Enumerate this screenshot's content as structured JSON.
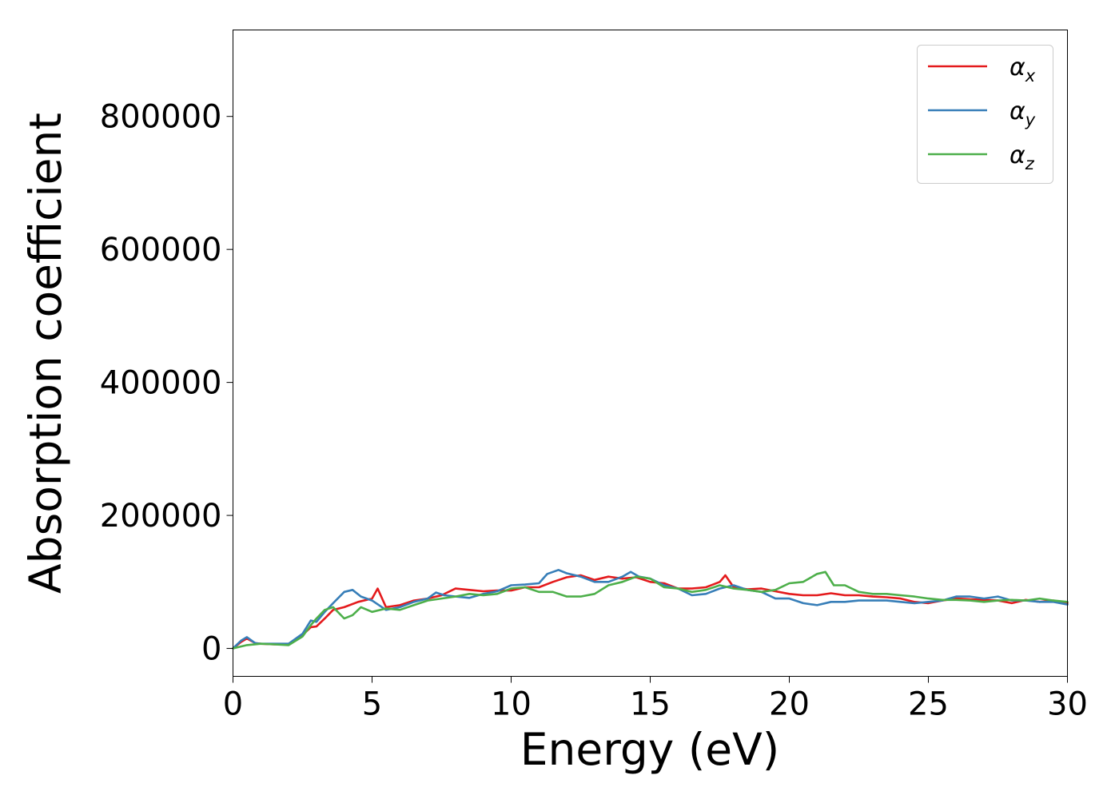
{
  "chart_data": {
    "type": "line",
    "xlabel": "Energy (eV)",
    "ylabel": "Absorption coefficient",
    "xlim": [
      0,
      30
    ],
    "ylim": [
      -42000,
      930000
    ],
    "xticks": [
      0,
      5,
      10,
      15,
      20,
      25,
      30
    ],
    "xtick_labels": [
      "0",
      "5",
      "10",
      "15",
      "20",
      "25",
      "30"
    ],
    "yticks": [
      0,
      200000,
      400000,
      600000,
      800000
    ],
    "ytick_labels": [
      "0",
      "200000",
      "400000",
      "600000",
      "800000"
    ],
    "grid": false,
    "legend_position": "top-right",
    "series": [
      {
        "name": "α",
        "subscript": "x",
        "color": "#e41a1c",
        "x": [
          0,
          0.3,
          0.5,
          0.8,
          1.0,
          1.5,
          2.0,
          2.5,
          2.8,
          3.0,
          3.3,
          3.6,
          4.0,
          4.5,
          5.0,
          5.2,
          5.5,
          6.0,
          6.5,
          7.0,
          7.5,
          8.0,
          8.5,
          9.0,
          9.5,
          10.0,
          10.5,
          11.0,
          11.5,
          12.0,
          12.5,
          13.0,
          13.5,
          14.0,
          14.5,
          15.0,
          15.5,
          16.0,
          16.5,
          17.0,
          17.5,
          17.7,
          18.0,
          18.5,
          19.0,
          19.5,
          20.0,
          20.5,
          21.0,
          21.5,
          22.0,
          22.5,
          23.0,
          23.5,
          24.0,
          24.5,
          25.0,
          25.5,
          26.0,
          26.5,
          27.0,
          27.5,
          28.0,
          28.5,
          29.0,
          29.5,
          30.0
        ],
        "y": [
          0,
          10000,
          15000,
          8000,
          7000,
          6000,
          7000,
          20000,
          32000,
          33000,
          45000,
          58000,
          62000,
          70000,
          75000,
          90000,
          62000,
          65000,
          72000,
          75000,
          80000,
          90000,
          88000,
          86000,
          87000,
          87000,
          92000,
          92000,
          100000,
          107000,
          110000,
          103000,
          108000,
          105000,
          107000,
          100000,
          98000,
          90000,
          90000,
          92000,
          100000,
          110000,
          92000,
          89000,
          90000,
          86000,
          82000,
          80000,
          80000,
          83000,
          80000,
          80000,
          78000,
          77000,
          75000,
          70000,
          68000,
          72000,
          75000,
          74000,
          73000,
          72000,
          68000,
          73000,
          70000,
          72000,
          68000
        ]
      },
      {
        "name": "α",
        "subscript": "y",
        "color": "#377eb8",
        "x": [
          0,
          0.3,
          0.5,
          0.8,
          1.0,
          1.5,
          2.0,
          2.5,
          2.8,
          3.0,
          3.3,
          3.6,
          4.0,
          4.3,
          4.6,
          5.0,
          5.5,
          6.0,
          6.5,
          7.0,
          7.3,
          7.6,
          8.0,
          8.5,
          9.0,
          9.5,
          10.0,
          10.5,
          11.0,
          11.3,
          11.7,
          12.0,
          12.5,
          13.0,
          13.5,
          14.0,
          14.3,
          14.6,
          15.0,
          15.5,
          16.0,
          16.5,
          17.0,
          17.5,
          18.0,
          18.5,
          19.0,
          19.5,
          20.0,
          20.5,
          21.0,
          21.5,
          22.0,
          22.5,
          23.0,
          23.5,
          24.0,
          24.5,
          25.0,
          25.5,
          26.0,
          26.5,
          27.0,
          27.5,
          28.0,
          28.5,
          29.0,
          29.5,
          30.0
        ],
        "y": [
          0,
          12000,
          17000,
          8000,
          7000,
          7000,
          7000,
          22000,
          42000,
          40000,
          55000,
          68000,
          85000,
          88000,
          78000,
          72000,
          58000,
          62000,
          70000,
          75000,
          84000,
          80000,
          78000,
          76000,
          82000,
          86000,
          95000,
          96000,
          98000,
          112000,
          118000,
          113000,
          108000,
          100000,
          100000,
          108000,
          115000,
          108000,
          105000,
          95000,
          90000,
          80000,
          82000,
          90000,
          95000,
          88000,
          85000,
          75000,
          75000,
          68000,
          65000,
          70000,
          70000,
          72000,
          72000,
          72000,
          70000,
          68000,
          70000,
          72000,
          78000,
          78000,
          75000,
          78000,
          72000,
          72000,
          70000,
          70000,
          66000
        ]
      },
      {
        "name": "α",
        "subscript": "z",
        "color": "#4daf4a",
        "x": [
          0,
          0.5,
          1.0,
          1.5,
          2.0,
          2.5,
          2.8,
          3.0,
          3.3,
          3.6,
          4.0,
          4.3,
          4.6,
          5.0,
          5.5,
          6.0,
          6.5,
          7.0,
          7.5,
          8.0,
          8.5,
          9.0,
          9.5,
          10.0,
          10.5,
          11.0,
          11.5,
          12.0,
          12.5,
          13.0,
          13.5,
          14.0,
          14.5,
          15.0,
          15.5,
          16.0,
          16.5,
          17.0,
          17.5,
          18.0,
          18.5,
          19.0,
          19.5,
          20.0,
          20.5,
          21.0,
          21.3,
          21.6,
          22.0,
          22.5,
          23.0,
          23.5,
          24.0,
          24.5,
          25.0,
          25.5,
          26.0,
          26.5,
          27.0,
          27.5,
          28.0,
          28.5,
          29.0,
          29.5,
          30.0
        ],
        "y": [
          0,
          5000,
          7000,
          6000,
          5000,
          18000,
          35000,
          45000,
          58000,
          62000,
          45000,
          50000,
          62000,
          55000,
          60000,
          58000,
          65000,
          72000,
          75000,
          78000,
          82000,
          80000,
          82000,
          90000,
          92000,
          85000,
          85000,
          78000,
          78000,
          82000,
          95000,
          100000,
          108000,
          105000,
          92000,
          90000,
          85000,
          88000,
          95000,
          90000,
          88000,
          85000,
          88000,
          98000,
          100000,
          112000,
          115000,
          95000,
          95000,
          85000,
          82000,
          82000,
          80000,
          78000,
          75000,
          73000,
          73000,
          72000,
          70000,
          72000,
          73000,
          72000,
          75000,
          72000,
          70000
        ]
      }
    ]
  }
}
